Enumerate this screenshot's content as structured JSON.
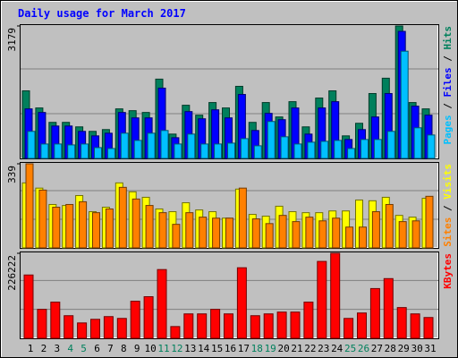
{
  "chart_data": {
    "type": "bar",
    "title": "Daily usage for March 2017",
    "title_color": "#0000ff",
    "legend_separator": " / ",
    "categories": [
      "1",
      "2",
      "3",
      "4",
      "5",
      "6",
      "7",
      "8",
      "9",
      "10",
      "11",
      "12",
      "13",
      "14",
      "15",
      "16",
      "17",
      "18",
      "19",
      "20",
      "21",
      "22",
      "23",
      "24",
      "25",
      "26",
      "27",
      "28",
      "29",
      "30",
      "31"
    ],
    "category_colors": [
      "#000000",
      "#000000",
      "#000000",
      "#00805c",
      "#00805c",
      "#000000",
      "#000000",
      "#000000",
      "#000000",
      "#000000",
      "#00805c",
      "#00805c",
      "#000000",
      "#000000",
      "#000000",
      "#000000",
      "#000000",
      "#00805c",
      "#00805c",
      "#000000",
      "#000000",
      "#000000",
      "#000000",
      "#000000",
      "#00805c",
      "#00805c",
      "#000000",
      "#000000",
      "#000000",
      "#000000",
      "#000000"
    ],
    "grid": true,
    "panels": [
      {
        "ylim": [
          0,
          3179
        ],
        "yticks": [
          3179
        ],
        "series": [
          {
            "name": "Hits",
            "color": "#00805c",
            "values": [
              1622,
              1211,
              865,
              865,
              757,
              649,
              692,
              1189,
              1146,
              1103,
              1903,
              584,
              1276,
              1038,
              1341,
              1211,
              1730,
              865,
              1341,
              995,
              1362,
              757,
              1449,
              1622,
              541,
              843,
              1557,
              1925,
              3179,
              1341,
              1189
            ]
          },
          {
            "name": "Files",
            "color": "#0000ff",
            "values": [
              1189,
              1103,
              778,
              778,
              649,
              541,
              605,
              1103,
              973,
              973,
              1687,
              497,
              1124,
              951,
              1167,
              973,
              1535,
              670,
              1081,
              930,
              1211,
              584,
              1211,
              1362,
              454,
              692,
              995,
              1557,
              3049,
              1254,
              1038
            ]
          },
          {
            "name": "Pages",
            "color": "#00c0ff",
            "values": [
              649,
              346,
              346,
              324,
              346,
              259,
              238,
              605,
              432,
              605,
              670,
              346,
              584,
              346,
              346,
              367,
              475,
              303,
              886,
              519,
              346,
              389,
              410,
              432,
              238,
              454,
              454,
              649,
              2573,
              735,
              562
            ]
          }
        ]
      },
      {
        "ylim": [
          0,
          339
        ],
        "yticks": [
          339
        ],
        "series": [
          {
            "name": "Visits",
            "color": "#ffff00",
            "values": [
              262,
              241,
              175,
              171,
              211,
              146,
              164,
              262,
              226,
              204,
              157,
              146,
              182,
              153,
              146,
              120,
              237,
              135,
              128,
              168,
              146,
              142,
              142,
              149,
              149,
              193,
              190,
              204,
              131,
              124,
              200
            ]
          },
          {
            "name": "Sites",
            "color": "#ff8000",
            "values": [
              339,
              233,
              164,
              175,
              186,
              142,
              157,
              244,
              197,
              171,
              142,
              95,
              142,
              124,
              120,
              120,
              241,
              117,
              98,
              131,
              106,
              124,
              109,
              120,
              84,
              84,
              146,
              175,
              106,
              109,
              208
            ]
          }
        ]
      },
      {
        "ylim": [
          0,
          226222
        ],
        "yticks": [
          226222
        ],
        "series": [
          {
            "name": "KBytes",
            "color": "#ff0000",
            "values": [
              168490,
              77024,
              96280,
              60175,
              40919,
              50547,
              57768,
              52954,
              98687,
              110722,
              182932,
              31291,
              64989,
              64989,
              77024,
              64989,
              187746,
              60175,
              64989,
              69803,
              69803,
              96280,
              204595,
              226222,
              52954,
              67396,
              132385,
              158862,
              81838,
              64989,
              55361
            ]
          }
        ]
      }
    ]
  }
}
